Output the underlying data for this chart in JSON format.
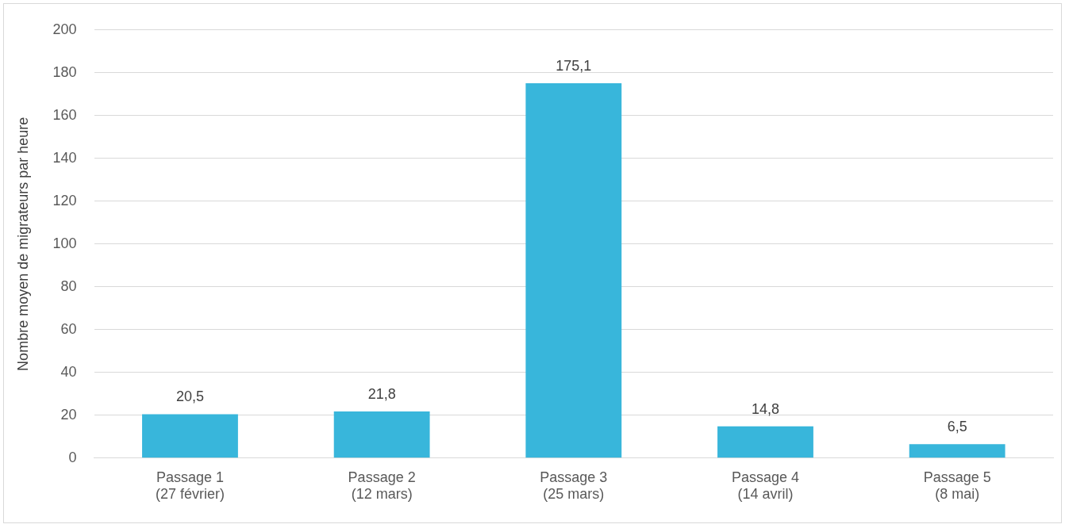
{
  "chart_data": {
    "type": "bar",
    "ylabel": "Nombre moyen de migrateurs par heure",
    "categories": [
      "Passage 1\n(27 février)",
      "Passage 2\n(12 mars)",
      "Passage 3\n(25 mars)",
      "Passage 4\n(14 avril)",
      "Passage 5\n(8 mai)"
    ],
    "values": [
      20.5,
      21.8,
      175.1,
      14.8,
      6.5
    ],
    "value_labels": [
      "20,5",
      "21,8",
      "175,1",
      "14,8",
      "6,5"
    ],
    "color": "#38b6db",
    "ylim": [
      0,
      200
    ],
    "yticks": [
      0,
      20,
      40,
      60,
      80,
      100,
      120,
      140,
      160,
      180,
      200
    ],
    "grid": "y",
    "legend": false
  }
}
